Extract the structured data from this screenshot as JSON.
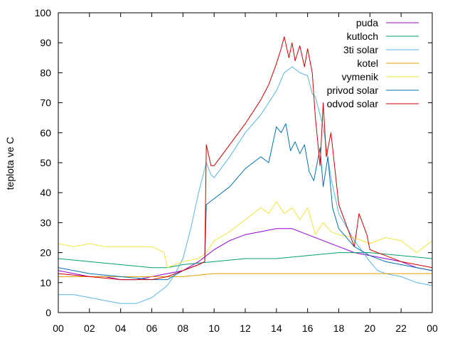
{
  "chart_data": {
    "type": "line",
    "title": "",
    "xlabel": "",
    "ylabel": "teplota ve C",
    "xlim": [
      0,
      24
    ],
    "ylim": [
      0,
      100
    ],
    "x_tick_labels": [
      "00",
      "02",
      "04",
      "06",
      "08",
      "10",
      "12",
      "14",
      "16",
      "18",
      "20",
      "22",
      "00"
    ],
    "y_tick_labels": [
      "0",
      "10",
      "20",
      "30",
      "40",
      "50",
      "60",
      "70",
      "80",
      "90",
      "100"
    ],
    "grid": false,
    "legend_position": "top-right",
    "series": [
      {
        "name": "puda",
        "color": "#9400d3",
        "x": [
          0,
          1,
          2,
          3,
          4,
          5,
          6,
          7,
          8,
          9,
          10,
          11,
          12,
          13,
          14,
          15,
          16,
          17,
          18,
          19,
          20,
          21,
          22,
          23,
          24
        ],
        "y": [
          14,
          13,
          12,
          12,
          11,
          11,
          12,
          13,
          14,
          17,
          21,
          24,
          26,
          27,
          28,
          28,
          26,
          24,
          22,
          20,
          19,
          18,
          17,
          15,
          14
        ]
      },
      {
        "name": "kutloch",
        "color": "#009e73",
        "x": [
          0,
          2,
          4,
          6,
          7,
          8,
          10,
          12,
          14,
          16,
          18,
          20,
          22,
          24
        ],
        "y": [
          18,
          17,
          16,
          15,
          15,
          16,
          17,
          18,
          18,
          19,
          20,
          20,
          19,
          18
        ]
      },
      {
        "name": "3ti solar",
        "color": "#56b4e9",
        "x": [
          0,
          1,
          2,
          3,
          4,
          5,
          6,
          7,
          7.5,
          8,
          8.5,
          9,
          9.5,
          9.8,
          10,
          11,
          12,
          13,
          14,
          14.5,
          15,
          15.5,
          16,
          16.3,
          16.5,
          17,
          17.5,
          18,
          19,
          20,
          20.5,
          21,
          22,
          23,
          24
        ],
        "y": [
          6,
          6,
          5,
          4,
          3,
          3,
          5,
          9,
          13,
          18,
          28,
          40,
          50,
          46,
          45,
          52,
          60,
          66,
          74,
          80,
          82,
          80,
          79,
          73,
          72,
          62,
          45,
          33,
          24,
          17,
          14,
          13,
          12,
          10,
          9
        ]
      },
      {
        "name": "kotel",
        "color": "#e69f00",
        "x": [
          0,
          2,
          4,
          6,
          8,
          10,
          12,
          14,
          16,
          18,
          20,
          22,
          24
        ],
        "y": [
          12,
          12,
          12,
          12,
          12,
          13,
          13,
          13,
          13,
          13,
          13,
          13,
          13
        ]
      },
      {
        "name": "vymenik",
        "color": "#f0e442",
        "x": [
          0,
          1,
          2,
          3,
          4,
          5,
          6,
          6.8,
          7,
          8,
          9,
          9.5,
          10,
          11,
          12,
          13,
          13.5,
          14,
          14.5,
          15,
          15.5,
          16,
          16.5,
          17,
          17.5,
          18,
          19,
          20,
          21,
          22,
          23,
          24
        ],
        "y": [
          23,
          22,
          23,
          22,
          22,
          22,
          22,
          20,
          15,
          17,
          18,
          20,
          24,
          27,
          31,
          35,
          33,
          37,
          33,
          35,
          31,
          35,
          26,
          30,
          27,
          26,
          25,
          23,
          25,
          24,
          20,
          24
        ]
      },
      {
        "name": "privod solar",
        "color": "#0072b2",
        "x": [
          0,
          2,
          4,
          6,
          7,
          8,
          9,
          9.4,
          9.5,
          10,
          11,
          12,
          13,
          13.5,
          14,
          14.3,
          14.6,
          14.9,
          15.2,
          15.5,
          15.8,
          16.1,
          16.4,
          16.8,
          17.0,
          17.3,
          17.6,
          18,
          19,
          20,
          21,
          22,
          23,
          24
        ],
        "y": [
          15,
          13,
          12,
          11,
          11,
          14,
          16,
          17,
          36,
          38,
          42,
          48,
          52,
          50,
          62,
          60,
          63,
          54,
          57,
          53,
          56,
          47,
          44,
          55,
          42,
          52,
          35,
          28,
          22,
          19,
          17,
          16,
          15,
          14
        ]
      },
      {
        "name": "odvod solar",
        "color": "#d00000",
        "x": [
          0,
          2,
          4,
          6,
          7,
          8,
          9,
          9.4,
          9.5,
          9.8,
          10,
          11,
          12,
          12.5,
          13,
          13.5,
          14,
          14.3,
          14.5,
          14.8,
          15,
          15.2,
          15.5,
          15.8,
          16,
          16.3,
          16.5,
          16.8,
          17,
          17.2,
          17.5,
          18,
          19,
          19.3,
          19.8,
          20,
          21,
          22,
          23,
          24
        ],
        "y": [
          13,
          12,
          11,
          11,
          12,
          14,
          16,
          17,
          56,
          49,
          49,
          56,
          63,
          67,
          71,
          76,
          83,
          88,
          92,
          85,
          90,
          84,
          89,
          82,
          88,
          80,
          65,
          49,
          70,
          52,
          60,
          36,
          22,
          33,
          26,
          21,
          19,
          17,
          16,
          15
        ]
      }
    ]
  }
}
